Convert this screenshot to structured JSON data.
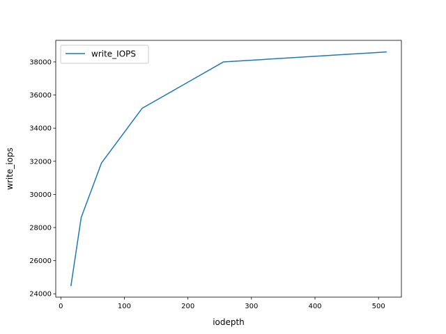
{
  "chart_data": {
    "type": "line",
    "title": "",
    "xlabel": "iodepth",
    "ylabel": "write_iops",
    "xlim": [
      -8,
      536
    ],
    "ylim": [
      23800,
      39300
    ],
    "xticks": [
      0,
      100,
      200,
      300,
      400,
      500
    ],
    "yticks": [
      24000,
      26000,
      28000,
      30000,
      32000,
      34000,
      36000,
      38000
    ],
    "grid": false,
    "legend_position": "top-left",
    "series": [
      {
        "name": "write_IOPS",
        "color": "#1f77b4",
        "x": [
          16,
          32,
          64,
          128,
          256,
          512
        ],
        "y": [
          24500,
          28600,
          31900,
          35200,
          38000,
          38600
        ]
      }
    ]
  }
}
